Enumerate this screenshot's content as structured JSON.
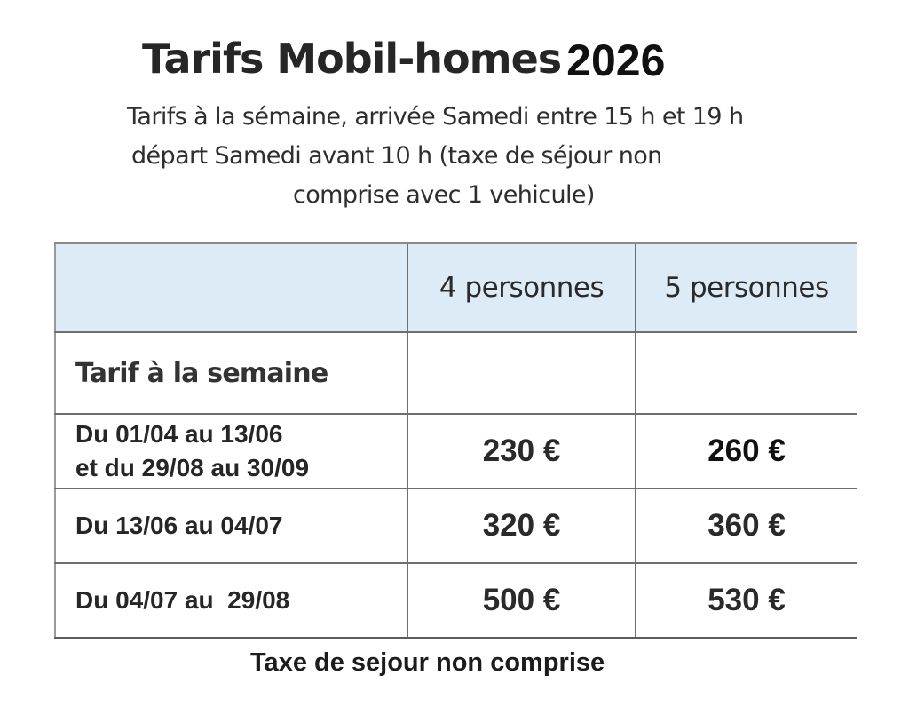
{
  "title": {
    "main": "Tarifs Mobil-homes",
    "year": "2026"
  },
  "subtitle": {
    "line1": "Tarifs à la sémaine, arrivée Samedi entre 15 h et 19 h",
    "line2": "départ Samedi avant 10 h (taxe de séjour non",
    "line3": "comprise avec 1 vehicule)"
  },
  "table": {
    "headers": [
      "",
      "4 personnes",
      "5 personnes"
    ],
    "label_row": "Tarif à la semaine",
    "rows": [
      {
        "period_line1": "Du 01/04 au 13/06",
        "period_line2": "et du 29/08 au 30/09",
        "price_4": "230 €",
        "price_5": "260 €"
      },
      {
        "period_line1": "Du 13/06 au 04/07",
        "period_line2": "",
        "price_4": "320 €",
        "price_5": "360 €"
      },
      {
        "period_line1": "Du 04/07 au  29/08",
        "period_line2": "",
        "price_4": "500 €",
        "price_5": "530 €"
      }
    ]
  },
  "footer": "Taxe de sejour non comprise",
  "colors": {
    "header_bg": "#dcebf6",
    "border": "#6f6f6f",
    "text": "#2b2b2b"
  }
}
